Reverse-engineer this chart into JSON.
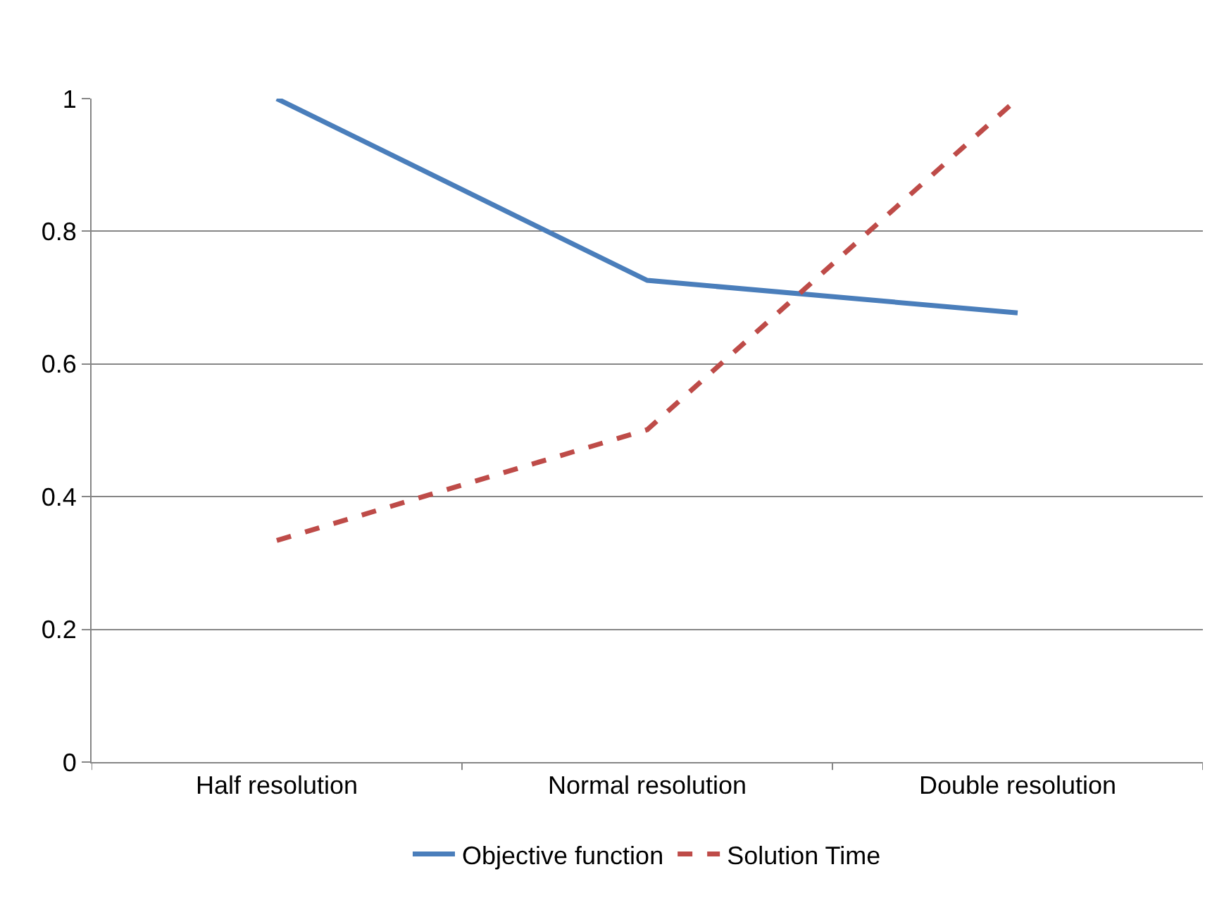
{
  "chart_data": {
    "type": "line",
    "categories": [
      "Half resolution",
      "Normal resolution",
      "Double resolution"
    ],
    "series": [
      {
        "name": "Objective function",
        "color": "#4a7ebb",
        "values": [
          1,
          0.726,
          0.677
        ],
        "line_style": "solid"
      },
      {
        "name": "Solution Time",
        "color": "#be4b48",
        "values": [
          0.334,
          0.501,
          1
        ],
        "line_style": "dashed"
      }
    ],
    "ylim": [
      0,
      1
    ],
    "yticks": [
      0,
      0.2,
      0.4,
      0.6,
      0.8,
      1
    ],
    "grid": "y",
    "legend": "bottom",
    "marker": "none"
  }
}
